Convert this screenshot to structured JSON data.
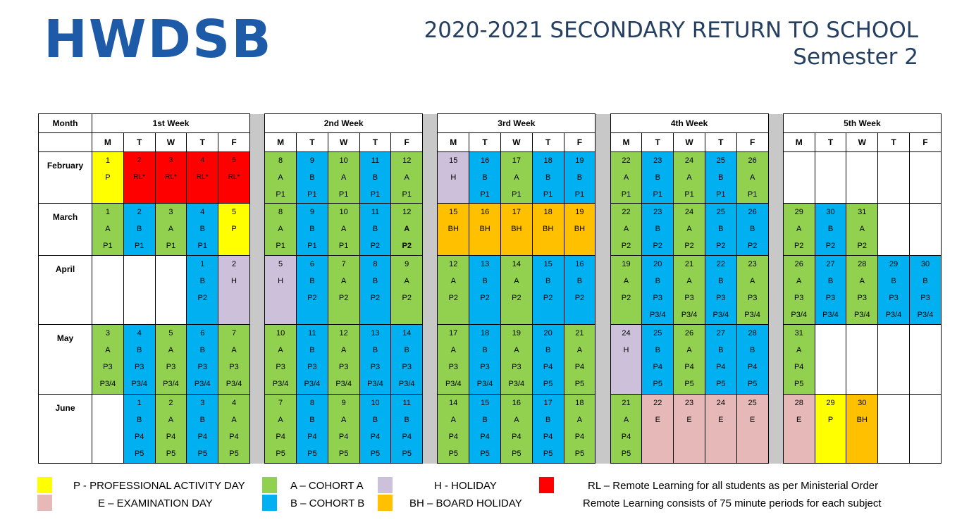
{
  "header": {
    "logo": "HWDSB",
    "title_line1": "2020-2021 SECONDARY RETURN TO SCHOOL",
    "title_line2": "Semester 2"
  },
  "calendar": {
    "month_header": "Month",
    "weeks": [
      "1st Week",
      "2nd Week",
      "3rd Week",
      "4th Week",
      "5th Week"
    ],
    "days": [
      "M",
      "T",
      "W",
      "T",
      "F"
    ],
    "rows": [
      {
        "month": "February",
        "cells": [
          {
            "c": "P",
            "l": [
              "1",
              "P"
            ]
          },
          {
            "c": "R",
            "l": [
              "2",
              "RL*"
            ]
          },
          {
            "c": "R",
            "l": [
              "3",
              "RL*"
            ]
          },
          {
            "c": "R",
            "l": [
              "4",
              "RL*"
            ]
          },
          {
            "c": "R",
            "l": [
              "5",
              "RL*"
            ]
          },
          {
            "c": "A",
            "l": [
              "8",
              "A",
              "P1"
            ]
          },
          {
            "c": "B",
            "l": [
              "9",
              "B",
              "P1"
            ]
          },
          {
            "c": "A",
            "l": [
              "10",
              "A",
              "P1"
            ]
          },
          {
            "c": "B",
            "l": [
              "11",
              "B",
              "P1"
            ]
          },
          {
            "c": "A",
            "l": [
              "12",
              "A",
              "P1"
            ]
          },
          {
            "c": "H",
            "l": [
              "15",
              "H"
            ]
          },
          {
            "c": "B",
            "l": [
              "16",
              "B",
              "P1"
            ]
          },
          {
            "c": "A",
            "l": [
              "17",
              "A",
              "P1"
            ]
          },
          {
            "c": "B",
            "l": [
              "18",
              "B",
              "P1"
            ]
          },
          {
            "c": "B",
            "l": [
              "19",
              "B",
              "P1"
            ]
          },
          {
            "c": "A",
            "l": [
              "22",
              "A",
              "P1"
            ]
          },
          {
            "c": "B",
            "l": [
              "23",
              "B",
              "P1"
            ]
          },
          {
            "c": "A",
            "l": [
              "24",
              "A",
              "P1"
            ]
          },
          {
            "c": "B",
            "l": [
              "25",
              "B",
              "P1"
            ]
          },
          {
            "c": "A",
            "l": [
              "26",
              "A",
              "P1"
            ]
          },
          {
            "c": "W",
            "l": []
          },
          {
            "c": "W",
            "l": []
          },
          {
            "c": "W",
            "l": []
          },
          {
            "c": "W",
            "l": []
          },
          {
            "c": "W",
            "l": []
          }
        ]
      },
      {
        "month": "March",
        "cells": [
          {
            "c": "A",
            "l": [
              "1",
              "A",
              "P1"
            ]
          },
          {
            "c": "B",
            "l": [
              "2",
              "B",
              "P1"
            ]
          },
          {
            "c": "A",
            "l": [
              "3",
              "A",
              "P1"
            ]
          },
          {
            "c": "B",
            "l": [
              "4",
              "B",
              "P1"
            ]
          },
          {
            "c": "P",
            "l": [
              "5",
              "P"
            ]
          },
          {
            "c": "A",
            "l": [
              "8",
              "A",
              "P1"
            ]
          },
          {
            "c": "B",
            "l": [
              "9",
              "B",
              "P1"
            ]
          },
          {
            "c": "A",
            "l": [
              "10",
              "A",
              "P1"
            ]
          },
          {
            "c": "B",
            "l": [
              "11",
              "B",
              "P2"
            ]
          },
          {
            "c": "A",
            "l": [
              "12",
              "A",
              "P2"
            ],
            "bold": true
          },
          {
            "c": "BH",
            "l": [
              "15",
              "BH"
            ]
          },
          {
            "c": "BH",
            "l": [
              "16",
              "BH"
            ]
          },
          {
            "c": "BH",
            "l": [
              "17",
              "BH"
            ]
          },
          {
            "c": "BH",
            "l": [
              "18",
              "BH"
            ]
          },
          {
            "c": "BH",
            "l": [
              "19",
              "BH"
            ]
          },
          {
            "c": "A",
            "l": [
              "22",
              "A",
              "P2"
            ]
          },
          {
            "c": "B",
            "l": [
              "23",
              "B",
              "P2"
            ]
          },
          {
            "c": "A",
            "l": [
              "24",
              "A",
              "P2"
            ]
          },
          {
            "c": "B",
            "l": [
              "25",
              "B",
              "P2"
            ]
          },
          {
            "c": "B",
            "l": [
              "26",
              "B",
              "P2"
            ]
          },
          {
            "c": "A",
            "l": [
              "29",
              "A",
              "P2"
            ]
          },
          {
            "c": "B",
            "l": [
              "30",
              "B",
              "P2"
            ]
          },
          {
            "c": "A",
            "l": [
              "31",
              "A",
              "P2"
            ]
          },
          {
            "c": "W",
            "l": []
          },
          {
            "c": "W",
            "l": []
          }
        ]
      },
      {
        "month": "April",
        "cells": [
          {
            "c": "W",
            "l": []
          },
          {
            "c": "W",
            "l": []
          },
          {
            "c": "W",
            "l": []
          },
          {
            "c": "B",
            "l": [
              "1",
              "B",
              "P2"
            ]
          },
          {
            "c": "H",
            "l": [
              "2",
              "H"
            ]
          },
          {
            "c": "H",
            "l": [
              "5",
              "H"
            ]
          },
          {
            "c": "B",
            "l": [
              "6",
              "B",
              "P2"
            ]
          },
          {
            "c": "A",
            "l": [
              "7",
              "A",
              "P2"
            ]
          },
          {
            "c": "B",
            "l": [
              "8",
              "B",
              "P2"
            ]
          },
          {
            "c": "A",
            "l": [
              "9",
              "A",
              "P2"
            ]
          },
          {
            "c": "A",
            "l": [
              "12",
              "A",
              "P2"
            ]
          },
          {
            "c": "B",
            "l": [
              "13",
              "B",
              "P2"
            ]
          },
          {
            "c": "A",
            "l": [
              "14",
              "A",
              "P2"
            ]
          },
          {
            "c": "B",
            "l": [
              "15",
              "B",
              "P2"
            ]
          },
          {
            "c": "B",
            "l": [
              "16",
              "B",
              "P2"
            ]
          },
          {
            "c": "A",
            "l": [
              "19",
              "A",
              "P2"
            ]
          },
          {
            "c": "B",
            "l": [
              "20",
              "B",
              "P3",
              "P3/4"
            ]
          },
          {
            "c": "A",
            "l": [
              "21",
              "A",
              "P3",
              "P3/4"
            ]
          },
          {
            "c": "B",
            "l": [
              "22",
              "B",
              "P3",
              "P3/4"
            ]
          },
          {
            "c": "A",
            "l": [
              "23",
              "A",
              "P3",
              "P3/4"
            ]
          },
          {
            "c": "A",
            "l": [
              "26",
              "A",
              "P3",
              "P3/4"
            ]
          },
          {
            "c": "B",
            "l": [
              "27",
              "B",
              "P3",
              "P3/4"
            ]
          },
          {
            "c": "A",
            "l": [
              "28",
              "A",
              "P3",
              "P3/4"
            ]
          },
          {
            "c": "B",
            "l": [
              "29",
              "B",
              "P3",
              "P3/4"
            ]
          },
          {
            "c": "B",
            "l": [
              "30",
              "B",
              "P3",
              "P3/4"
            ]
          }
        ]
      },
      {
        "month": "May",
        "cells": [
          {
            "c": "A",
            "l": [
              "3",
              "A",
              "P3",
              "P3/4"
            ]
          },
          {
            "c": "B",
            "l": [
              "4",
              "B",
              "P3",
              "P3/4"
            ]
          },
          {
            "c": "A",
            "l": [
              "5",
              "A",
              "P3",
              "P3/4"
            ]
          },
          {
            "c": "B",
            "l": [
              "6",
              "B",
              "P3",
              "P3/4"
            ]
          },
          {
            "c": "A",
            "l": [
              "7",
              "A",
              "P3",
              "P3/4"
            ]
          },
          {
            "c": "A",
            "l": [
              "10",
              "A",
              "P3",
              "P3/4"
            ]
          },
          {
            "c": "B",
            "l": [
              "11",
              "B",
              "P3",
              "P3/4"
            ]
          },
          {
            "c": "A",
            "l": [
              "12",
              "A",
              "P3",
              "P3/4"
            ]
          },
          {
            "c": "B",
            "l": [
              "13",
              "B",
              "P3",
              "P3/4"
            ]
          },
          {
            "c": "B",
            "l": [
              "14",
              "B",
              "P3",
              "P3/4"
            ]
          },
          {
            "c": "A",
            "l": [
              "17",
              "A",
              "P3",
              "P3/4"
            ]
          },
          {
            "c": "B",
            "l": [
              "18",
              "B",
              "P3",
              "P3/4"
            ]
          },
          {
            "c": "A",
            "l": [
              "19",
              "A",
              "P3",
              "P3/4"
            ]
          },
          {
            "c": "B",
            "l": [
              "20",
              "B",
              "P4",
              "P5"
            ]
          },
          {
            "c": "A",
            "l": [
              "21",
              "A",
              "P4",
              "P5"
            ]
          },
          {
            "c": "H",
            "l": [
              "24",
              "H"
            ]
          },
          {
            "c": "B",
            "l": [
              "25",
              "B",
              "P4",
              "P5"
            ]
          },
          {
            "c": "A",
            "l": [
              "26",
              "A",
              "P4",
              "P5"
            ]
          },
          {
            "c": "B",
            "l": [
              "27",
              "B",
              "P4",
              "P5"
            ]
          },
          {
            "c": "B",
            "l": [
              "28",
              "B",
              "P4",
              "P5"
            ]
          },
          {
            "c": "A",
            "l": [
              "31",
              "A",
              "P4",
              "P5"
            ]
          },
          {
            "c": "W",
            "l": []
          },
          {
            "c": "W",
            "l": []
          },
          {
            "c": "W",
            "l": []
          },
          {
            "c": "W",
            "l": []
          }
        ]
      },
      {
        "month": "June",
        "cells": [
          {
            "c": "W",
            "l": []
          },
          {
            "c": "B",
            "l": [
              "1",
              "B",
              "P4",
              "P5"
            ]
          },
          {
            "c": "A",
            "l": [
              "2",
              "A",
              "P4",
              "P5"
            ]
          },
          {
            "c": "B",
            "l": [
              "3",
              "B",
              "P4",
              "P5"
            ]
          },
          {
            "c": "A",
            "l": [
              "4",
              "A",
              "P4",
              "P5"
            ]
          },
          {
            "c": "A",
            "l": [
              "7",
              "A",
              "P4",
              "P5"
            ]
          },
          {
            "c": "B",
            "l": [
              "8",
              "B",
              "P4",
              "P5"
            ]
          },
          {
            "c": "A",
            "l": [
              "9",
              "A",
              "P4",
              "P5"
            ]
          },
          {
            "c": "B",
            "l": [
              "10",
              "B",
              "P4",
              "P5"
            ]
          },
          {
            "c": "B",
            "l": [
              "11",
              "B",
              "P4",
              "P5"
            ]
          },
          {
            "c": "A",
            "l": [
              "14",
              "A",
              "P4",
              "P5"
            ]
          },
          {
            "c": "B",
            "l": [
              "15",
              "B",
              "P4",
              "P5"
            ]
          },
          {
            "c": "A",
            "l": [
              "16",
              "A",
              "P4",
              "P5"
            ]
          },
          {
            "c": "B",
            "l": [
              "17",
              "B",
              "P4",
              "P5"
            ]
          },
          {
            "c": "A",
            "l": [
              "18",
              "A",
              "P4",
              "P5"
            ]
          },
          {
            "c": "A",
            "l": [
              "21",
              "A",
              "P4",
              "P5"
            ]
          },
          {
            "c": "E",
            "l": [
              "22",
              "E"
            ]
          },
          {
            "c": "E",
            "l": [
              "23",
              "E"
            ]
          },
          {
            "c": "E",
            "l": [
              "24",
              "E"
            ]
          },
          {
            "c": "E",
            "l": [
              "25",
              "E"
            ]
          },
          {
            "c": "E",
            "l": [
              "28",
              "E"
            ]
          },
          {
            "c": "P",
            "l": [
              "29",
              "P"
            ]
          },
          {
            "c": "BH",
            "l": [
              "30",
              "BH"
            ]
          },
          {
            "c": "W",
            "l": []
          },
          {
            "c": "W",
            "l": []
          }
        ]
      }
    ]
  },
  "legend": {
    "professional": "P - PROFESSIONAL ACTIVITY DAY",
    "examination": "E – EXAMINATION DAY",
    "cohort_a": "A – COHORT A",
    "cohort_b": "B – COHORT B",
    "holiday": "H - HOLIDAY",
    "board_holiday": "BH – BOARD HOLIDAY",
    "remote_1": "RL – Remote Learning for all students as per Ministerial Order",
    "remote_2": "Remote Learning consists of 75 minute periods for each subject"
  },
  "colors": {
    "brand_blue": "#1d5aa8",
    "title_navy": "#243f60",
    "cohort_a": "#92d050",
    "cohort_b": "#00b0f0",
    "holiday": "#ccc0da",
    "professional": "#ffff00",
    "remote": "#ff0000",
    "board_holiday": "#ffc000",
    "examination": "#e6b8b7",
    "separator": "#c8c8c8"
  }
}
